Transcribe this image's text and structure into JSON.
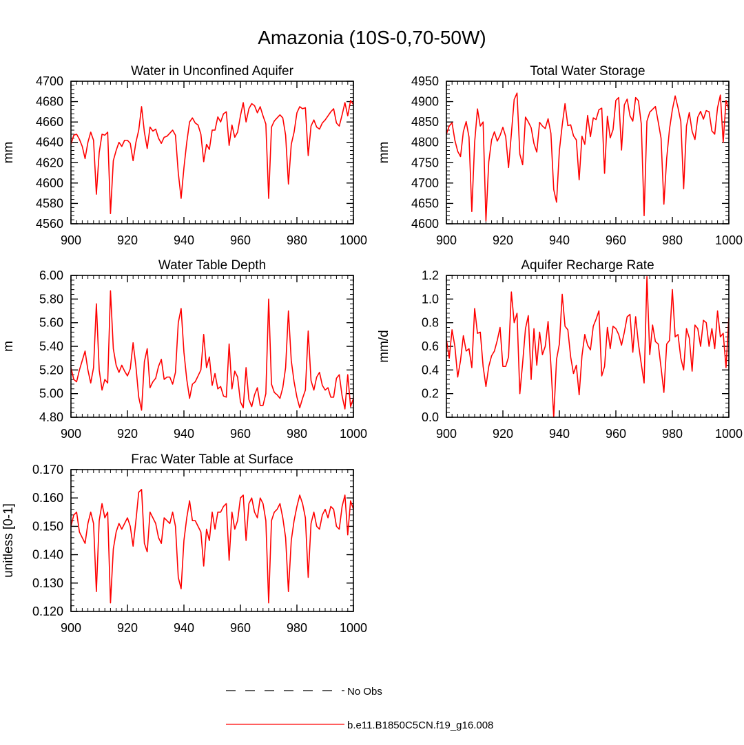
{
  "figure": {
    "title": "Amazonia (10S-0,70-50W)"
  },
  "legend": {
    "position": "bottom-center",
    "entries": [
      {
        "label": "No Obs",
        "style": "dashed",
        "color": "#000000"
      },
      {
        "label": "b.e11.B1850C5CN.f19_g16.008",
        "style": "solid",
        "color": "#ff0000"
      }
    ]
  },
  "chart_data": [
    {
      "type": "line",
      "title": "Water in Unconfined Aquifer",
      "ylabel": "mm",
      "xlabel": "",
      "xlim": [
        900,
        1000
      ],
      "ylim": [
        4560,
        4700
      ],
      "xticks": [
        "900",
        "920",
        "940",
        "960",
        "980",
        "1000"
      ],
      "yticks": [
        "4560",
        "4580",
        "4600",
        "4620",
        "4640",
        "4660",
        "4680",
        "4700"
      ],
      "series": [
        {
          "name": "b.e11.B1850C5CN.f19_g16.008",
          "color": "#ff0000",
          "x_start": 900,
          "x_step": 1,
          "values": [
            4638,
            4647,
            4648,
            4643,
            4636,
            4624,
            4640,
            4650,
            4642,
            4589,
            4630,
            4648,
            4647,
            4650,
            4570,
            4622,
            4632,
            4640,
            4636,
            4642,
            4642,
            4639,
            4622,
            4640,
            4652,
            4675,
            4650,
            4634,
            4655,
            4651,
            4653,
            4644,
            4639,
            4645,
            4646,
            4649,
            4652,
            4647,
            4610,
            4585,
            4615,
            4640,
            4660,
            4664,
            4659,
            4657,
            4648,
            4621,
            4638,
            4633,
            4652,
            4652,
            4665,
            4660,
            4668,
            4670,
            4637,
            4657,
            4645,
            4650,
            4666,
            4679,
            4660,
            4673,
            4678,
            4676,
            4669,
            4675,
            4666,
            4658,
            4585,
            4655,
            4661,
            4664,
            4667,
            4664,
            4647,
            4599,
            4638,
            4650,
            4669,
            4675,
            4673,
            4674,
            4627,
            4656,
            4662,
            4655,
            4653,
            4659,
            4662,
            4666,
            4670,
            4673,
            4659,
            4656,
            4667,
            4679,
            4666,
            4681,
            4677
          ]
        }
      ]
    },
    {
      "type": "line",
      "title": "Total Water Storage",
      "ylabel": "mm",
      "xlabel": "",
      "xlim": [
        900,
        1000
      ],
      "ylim": [
        4600,
        4950
      ],
      "xticks": [
        "900",
        "920",
        "940",
        "960",
        "980",
        "1000"
      ],
      "yticks": [
        "4600",
        "4650",
        "4700",
        "4750",
        "4800",
        "4850",
        "4900",
        "4950"
      ],
      "series": [
        {
          "name": "b.e11.B1850C5CN.f19_g16.008",
          "color": "#ff0000",
          "x_start": 900,
          "x_step": 1,
          "values": [
            4820,
            4840,
            4848,
            4805,
            4778,
            4765,
            4826,
            4851,
            4813,
            4630,
            4800,
            4882,
            4840,
            4850,
            4607,
            4752,
            4806,
            4826,
            4803,
            4817,
            4837,
            4814,
            4738,
            4821,
            4905,
            4921,
            4771,
            4745,
            4862,
            4850,
            4836,
            4797,
            4776,
            4849,
            4840,
            4834,
            4858,
            4822,
            4684,
            4653,
            4780,
            4842,
            4895,
            4841,
            4843,
            4816,
            4806,
            4708,
            4815,
            4795,
            4866,
            4814,
            4860,
            4856,
            4880,
            4884,
            4724,
            4864,
            4811,
            4831,
            4903,
            4910,
            4781,
            4892,
            4906,
            4865,
            4852,
            4910,
            4902,
            4845,
            4620,
            4852,
            4874,
            4881,
            4888,
            4850,
            4810,
            4648,
            4761,
            4833,
            4880,
            4914,
            4885,
            4851,
            4686,
            4840,
            4873,
            4827,
            4807,
            4862,
            4876,
            4857,
            4878,
            4875,
            4828,
            4820,
            4885,
            4916,
            4800,
            4903,
            4880
          ]
        }
      ]
    },
    {
      "type": "line",
      "title": "Water Table Depth",
      "ylabel": "m",
      "xlabel": "",
      "xlim": [
        900,
        1000
      ],
      "ylim": [
        4.8,
        6.0
      ],
      "xticks": [
        "900",
        "920",
        "940",
        "960",
        "980",
        "1000"
      ],
      "yticks": [
        "4.80",
        "5.00",
        "5.20",
        "5.40",
        "5.60",
        "5.80",
        "6.00"
      ],
      "series": [
        {
          "name": "b.e11.B1850C5CN.f19_g16.008",
          "color": "#ff0000",
          "x_start": 900,
          "x_step": 1,
          "values": [
            5.22,
            5.12,
            5.1,
            5.2,
            5.28,
            5.36,
            5.2,
            5.09,
            5.22,
            5.76,
            5.2,
            5.03,
            5.12,
            5.09,
            5.87,
            5.38,
            5.24,
            5.18,
            5.24,
            5.19,
            5.15,
            5.21,
            5.43,
            5.23,
            4.97,
            4.86,
            5.27,
            5.38,
            5.05,
            5.1,
            5.13,
            5.23,
            5.29,
            5.12,
            5.14,
            5.14,
            5.08,
            5.18,
            5.6,
            5.72,
            5.35,
            5.12,
            4.96,
            5.08,
            5.1,
            5.15,
            5.2,
            5.5,
            5.22,
            5.31,
            5.07,
            5.17,
            5.04,
            5.06,
            4.98,
            4.97,
            5.42,
            5.04,
            5.19,
            5.14,
            4.93,
            4.88,
            5.22,
            4.95,
            4.89,
            4.99,
            5.05,
            4.9,
            4.9,
            5.0,
            5.8,
            5.08,
            5.01,
            4.99,
            4.96,
            5.05,
            5.22,
            5.7,
            5.28,
            5.1,
            4.97,
            4.88,
            4.96,
            5.03,
            5.53,
            5.11,
            5.03,
            5.14,
            5.18,
            5.07,
            5.03,
            5.05,
            4.97,
            4.97,
            5.13,
            5.16,
            4.98,
            4.87,
            5.16,
            4.89,
            4.96
          ]
        }
      ]
    },
    {
      "type": "line",
      "title": "Aquifer Recharge Rate",
      "ylabel": "mm/d",
      "xlabel": "",
      "xlim": [
        900,
        1000
      ],
      "ylim": [
        0.0,
        1.2
      ],
      "xticks": [
        "900",
        "920",
        "940",
        "960",
        "980",
        "1000"
      ],
      "yticks": [
        "0.0",
        "0.2",
        "0.4",
        "0.6",
        "0.8",
        "1.0",
        "1.2"
      ],
      "series": [
        {
          "name": "b.e11.B1850C5CN.f19_g16.008",
          "color": "#ff0000",
          "x_start": 900,
          "x_step": 1,
          "values": [
            0.66,
            0.5,
            0.74,
            0.6,
            0.34,
            0.48,
            0.69,
            0.56,
            0.58,
            0.42,
            0.92,
            0.71,
            0.72,
            0.43,
            0.26,
            0.43,
            0.52,
            0.56,
            0.65,
            0.76,
            0.43,
            0.43,
            0.51,
            1.06,
            0.8,
            0.88,
            0.2,
            0.46,
            0.75,
            0.86,
            0.32,
            0.75,
            0.44,
            0.72,
            0.53,
            0.6,
            0.81,
            0.44,
            0.0,
            0.49,
            0.62,
            1.04,
            0.77,
            0.74,
            0.51,
            0.37,
            0.44,
            0.19,
            0.52,
            0.7,
            0.61,
            0.57,
            0.77,
            0.83,
            0.9,
            0.35,
            0.43,
            0.76,
            0.58,
            0.77,
            0.75,
            0.7,
            0.61,
            0.72,
            0.85,
            0.87,
            0.55,
            0.85,
            0.62,
            0.45,
            0.29,
            1.19,
            0.53,
            0.78,
            0.64,
            0.62,
            0.42,
            0.21,
            0.62,
            0.65,
            1.08,
            0.68,
            0.7,
            0.5,
            0.4,
            0.75,
            0.67,
            0.39,
            0.78,
            0.75,
            0.6,
            0.82,
            0.8,
            0.6,
            0.75,
            0.58,
            0.9,
            0.68,
            0.71,
            0.42,
            0.84
          ]
        }
      ]
    },
    {
      "type": "line",
      "title": "Frac Water Table at Surface",
      "ylabel": "unitless [0-1]",
      "xlabel": "",
      "xlim": [
        900,
        1000
      ],
      "ylim": [
        0.12,
        0.17
      ],
      "xticks": [
        "900",
        "920",
        "940",
        "960",
        "980",
        "1000"
      ],
      "yticks": [
        "0.120",
        "0.130",
        "0.140",
        "0.150",
        "0.160",
        "0.170"
      ],
      "series": [
        {
          "name": "b.e11.B1850C5CN.f19_g16.008",
          "color": "#ff0000",
          "x_start": 900,
          "x_step": 1,
          "values": [
            0.15,
            0.154,
            0.155,
            0.148,
            0.146,
            0.144,
            0.151,
            0.155,
            0.151,
            0.127,
            0.152,
            0.158,
            0.153,
            0.155,
            0.123,
            0.142,
            0.148,
            0.151,
            0.149,
            0.151,
            0.153,
            0.15,
            0.143,
            0.152,
            0.162,
            0.163,
            0.144,
            0.141,
            0.155,
            0.153,
            0.151,
            0.146,
            0.144,
            0.153,
            0.152,
            0.151,
            0.155,
            0.15,
            0.132,
            0.128,
            0.145,
            0.153,
            0.159,
            0.152,
            0.152,
            0.15,
            0.148,
            0.136,
            0.149,
            0.145,
            0.155,
            0.149,
            0.155,
            0.155,
            0.157,
            0.158,
            0.138,
            0.155,
            0.149,
            0.152,
            0.16,
            0.161,
            0.145,
            0.158,
            0.16,
            0.155,
            0.153,
            0.16,
            0.158,
            0.152,
            0.123,
            0.152,
            0.155,
            0.156,
            0.158,
            0.153,
            0.146,
            0.127,
            0.145,
            0.152,
            0.157,
            0.161,
            0.158,
            0.153,
            0.132,
            0.151,
            0.155,
            0.15,
            0.149,
            0.154,
            0.156,
            0.153,
            0.157,
            0.156,
            0.15,
            0.149,
            0.157,
            0.161,
            0.147,
            0.159,
            0.156
          ]
        }
      ]
    }
  ]
}
